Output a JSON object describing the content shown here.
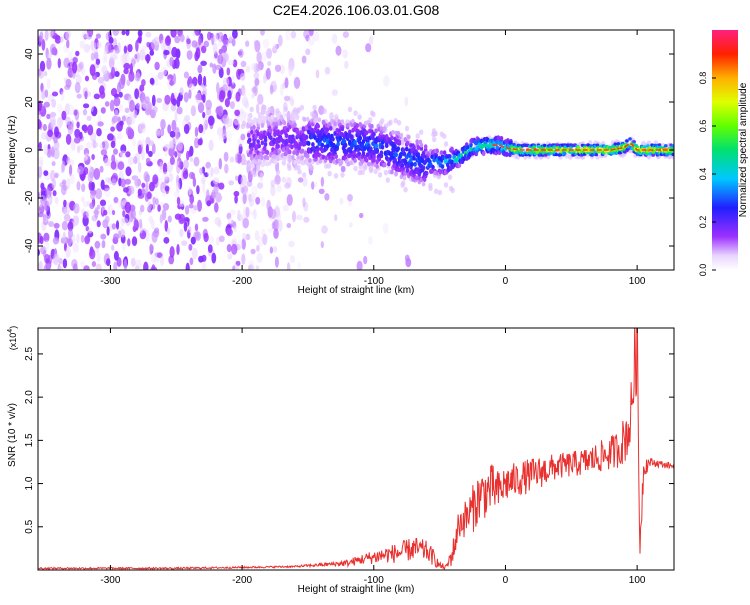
{
  "figure": {
    "title": "C2E4.2026.106.03.01.G08"
  },
  "chart_data": [
    {
      "type": "heatmap",
      "title": "C2E4.2026.106.03.01.G08",
      "xlabel": "Height of straight line (km)",
      "ylabel": "Frequency (Hz)",
      "xlim": [
        -355,
        128
      ],
      "ylim": [
        -50,
        50
      ],
      "xticks": [
        -300,
        -200,
        -100,
        0,
        100
      ],
      "yticks": [
        -40,
        -20,
        0,
        20,
        40
      ],
      "colorbar": {
        "label": "Normalized spectral amplitude",
        "range": [
          0,
          1
        ],
        "ticks": [
          0.0,
          0.2,
          0.4,
          0.6,
          0.8
        ],
        "tick_labels": [
          "0.0",
          "0.2",
          "0.4",
          "0.6",
          "0.8"
        ],
        "colormap": "rainbow"
      },
      "ridge": {
        "x": [
          -190,
          -170,
          -150,
          -130,
          -110,
          -100,
          -90,
          -80,
          -70,
          -60,
          -55,
          -45,
          -35,
          -25,
          -15,
          -5,
          0,
          10,
          30,
          60,
          80,
          90,
          95,
          100,
          110,
          128
        ],
        "y": [
          3,
          5,
          4,
          3,
          3,
          2,
          0,
          -2,
          -4,
          -6,
          -5,
          -5,
          -3,
          1,
          2,
          2,
          1,
          0,
          0,
          0,
          0,
          1,
          3,
          0,
          0,
          0
        ]
      }
    },
    {
      "type": "line",
      "xlabel": "Height of straight line (km)",
      "ylabel": "SNR (10 * v/v)",
      "yscale_label": "(x10",
      "yscale_exponent": "4",
      "xlim": [
        -355,
        128
      ],
      "ylim": [
        0,
        2.8
      ],
      "xticks": [
        -300,
        -200,
        -100,
        0,
        100
      ],
      "yticks": [
        0.5,
        1.0,
        1.5,
        2.0,
        2.5
      ],
      "y_tick_labels": [
        "0.5",
        "1.0",
        "1.5",
        "2.0",
        "2.5"
      ],
      "color": "#e8302e",
      "series": [
        {
          "x": [
            -355,
            -300,
            -250,
            -200,
            -160,
            -140,
            -120,
            -110,
            -100,
            -90,
            -80,
            -70,
            -60,
            -55,
            -50,
            -45,
            -40,
            -35,
            -30,
            -25,
            -20,
            -15,
            -10,
            -5,
            0,
            10,
            20,
            30,
            40,
            50,
            60,
            70,
            80,
            85,
            90,
            95,
            97,
            100,
            102,
            105,
            110,
            120,
            128
          ],
          "y": [
            0.02,
            0.02,
            0.02,
            0.03,
            0.04,
            0.06,
            0.08,
            0.12,
            0.15,
            0.18,
            0.2,
            0.25,
            0.22,
            0.15,
            0.05,
            0.03,
            0.2,
            0.55,
            0.6,
            0.7,
            0.85,
            0.9,
            0.95,
            0.9,
            1.0,
            1.05,
            1.1,
            1.15,
            1.2,
            1.22,
            1.25,
            1.3,
            1.35,
            1.4,
            1.5,
            1.7,
            2.2,
            2.7,
            0.3,
            1.2,
            1.25,
            1.22,
            1.2
          ],
          "spread": [
            0.01,
            0.01,
            0.01,
            0.01,
            0.01,
            0.02,
            0.04,
            0.06,
            0.08,
            0.1,
            0.12,
            0.14,
            0.12,
            0.1,
            0.04,
            0.03,
            0.15,
            0.2,
            0.22,
            0.28,
            0.3,
            0.3,
            0.28,
            0.25,
            0.22,
            0.2,
            0.2,
            0.18,
            0.15,
            0.15,
            0.16,
            0.18,
            0.2,
            0.22,
            0.28,
            0.35,
            0.5,
            0.6,
            0.3,
            0.15,
            0.05,
            0.04,
            0.03
          ]
        }
      ]
    }
  ]
}
